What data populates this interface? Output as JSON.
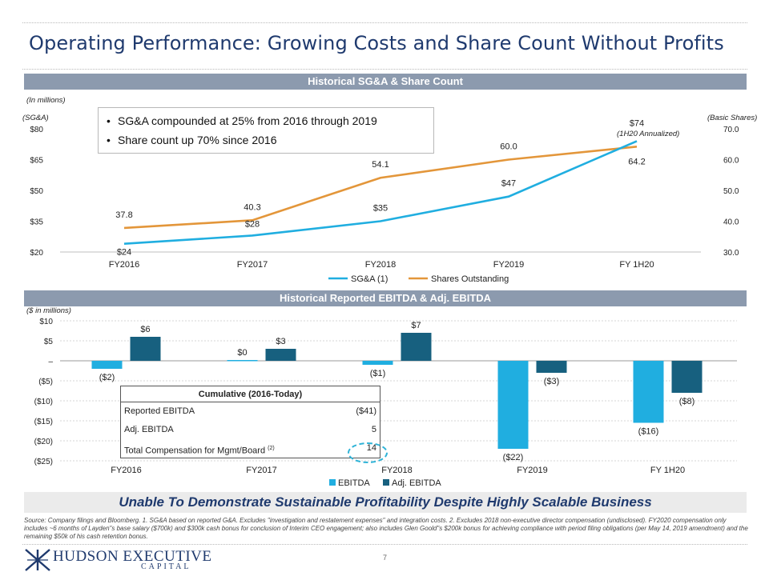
{
  "page": {
    "title": "Operating Performance: Growing Costs and Share Count Without Profits",
    "page_number": "7",
    "banner": "Unable To Demonstrate Sustainable Profitability Despite Highly Scalable Business",
    "source": "Source: Company filings and Bloomberg. 1. SG&A based on reported G&A. Excludes \"investigation and restatement expenses\" and integration costs. 2. Excludes 2018 non-executive director compensation (undisclosed). FY2020 compensation only includes ~6 months of Layden\"s base salary ($700k) and $300k cash bonus for conclusion of Interim CEO engagement; also includes Glen Goold\"s $200k bonus for achieving compliance with period filing obligations (per May 14, 2019 amendment) and the remaining $50k of his cash retention bonus.",
    "logo_word1": "HUDSON EXECUTIVE",
    "logo_word2": "CAPITAL"
  },
  "section1": {
    "header": "Historical SG&A & Share Count",
    "unit_note": "(In millions)",
    "left_axis_label": "(SG&A)",
    "right_axis_label": "(Basic Shares)",
    "annotation": "(1H20 Annualized)",
    "bullets": [
      "SG&A compounded at 25% from 2016 through 2019",
      "Share count up 70% since 2016"
    ]
  },
  "section2": {
    "header": "Historical Reported EBITDA & Adj. EBITDA",
    "unit_note": "($ in millions)",
    "table": {
      "header": "Cumulative (2016-Today)",
      "rows": [
        {
          "label": "Reported EBITDA",
          "value": "($41)",
          "sup": ""
        },
        {
          "label": "Adj. EBITDA",
          "value": "5",
          "sup": ""
        },
        {
          "label": "Total Compensation for Mgmt/Board",
          "value": "14",
          "sup": "(2)"
        }
      ]
    }
  },
  "chart_data": [
    {
      "type": "line",
      "categories": [
        "FY2016",
        "FY2017",
        "FY2018",
        "FY2019",
        "FY 1H20"
      ],
      "series": [
        {
          "name": "SG&A (1)",
          "axis": "left",
          "color": "#20aee0",
          "values": [
            24,
            28,
            35,
            47,
            74
          ],
          "labels": [
            "$24",
            "$28",
            "$35",
            "$47",
            "$74"
          ]
        },
        {
          "name": "Shares Outstanding",
          "axis": "right",
          "color": "#e3963a",
          "values": [
            37.8,
            40.3,
            54.1,
            60.0,
            64.2
          ],
          "labels": [
            "37.8",
            "40.3",
            "54.1",
            "60.0",
            "64.2"
          ]
        }
      ],
      "y_left": {
        "min": 20,
        "max": 80,
        "ticks": [
          20,
          35,
          50,
          65,
          80
        ],
        "tick_labels": [
          "$20",
          "$35",
          "$50",
          "$65",
          "$80"
        ]
      },
      "y_right": {
        "min": 30,
        "max": 70,
        "ticks": [
          30,
          40,
          50,
          60,
          70
        ],
        "tick_labels": [
          "30.0",
          "40.0",
          "50.0",
          "60.0",
          "70.0"
        ]
      },
      "legend": "bottom"
    },
    {
      "type": "bar",
      "categories": [
        "FY2016",
        "FY2017",
        "FY2018",
        "FY2019",
        "FY 1H20"
      ],
      "series": [
        {
          "name": "EBITDA",
          "color": "#20aee0",
          "values": [
            -2,
            0.2,
            -1,
            -22,
            -15.5
          ],
          "labels": [
            "($2)",
            "$0",
            "($1)",
            "($22)",
            "($16)"
          ]
        },
        {
          "name": "Adj. EBITDA",
          "color": "#17607f",
          "values": [
            6,
            3,
            7,
            -3,
            -8
          ],
          "labels": [
            "$6",
            "$3",
            "$7",
            "($3)",
            "($8)"
          ]
        }
      ],
      "ylim": [
        -25,
        10
      ],
      "ticks": [
        -25,
        -20,
        -15,
        -10,
        -5,
        0,
        5,
        10
      ],
      "tick_labels": [
        "($25)",
        "($20)",
        "($15)",
        "($10)",
        "($5)",
        "–",
        "$5",
        "$10"
      ],
      "legend": "bottom"
    }
  ]
}
